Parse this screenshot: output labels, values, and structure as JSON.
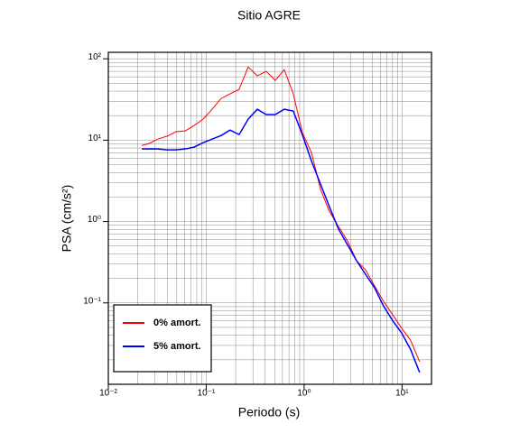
{
  "chart_data": {
    "type": "line",
    "title": "Sitio AGRE",
    "xlabel": "Periodo (s)",
    "ylabel": "PSA (cm/s²)",
    "xscale": "log",
    "yscale": "log",
    "grid": true,
    "minor_grid": true,
    "legend": "bottom-left",
    "xlim": [
      0.01,
      20
    ],
    "ylim": [
      0.01,
      120
    ],
    "xticks": [
      {
        "value": 0.01,
        "label": "10⁻²"
      },
      {
        "value": 0.1,
        "label": "10⁻¹"
      },
      {
        "value": 1,
        "label": "10⁰"
      },
      {
        "value": 10,
        "label": "10¹"
      }
    ],
    "yticks": [
      {
        "value": 0.1,
        "label": "10⁻¹"
      },
      {
        "value": 1,
        "label": "10⁰"
      },
      {
        "value": 10,
        "label": "10¹"
      },
      {
        "value": 100,
        "label": "10²"
      }
    ],
    "x": [
      0.022,
      0.026,
      0.032,
      0.04,
      0.049,
      0.061,
      0.075,
      0.093,
      0.115,
      0.142,
      0.175,
      0.217,
      0.268,
      0.332,
      0.41,
      0.507,
      0.627,
      0.775,
      0.959,
      1.19,
      1.47,
      1.81,
      2.24,
      2.77,
      3.43,
      4.24,
      5.24,
      6.47,
      8.0,
      9.89,
      12.2,
      15.1
    ],
    "series": [
      {
        "name": "0% amort.",
        "color": "#ff0000",
        "width": 1,
        "values": [
          8.6,
          9.1,
          10.3,
          11.2,
          12.7,
          13.0,
          15.1,
          18.1,
          24.0,
          32.6,
          37.0,
          42.0,
          79.4,
          61.6,
          70.0,
          54.2,
          73.6,
          37.0,
          12.4,
          7.0,
          2.5,
          1.34,
          0.87,
          0.58,
          0.33,
          0.256,
          0.162,
          0.105,
          0.072,
          0.049,
          0.035,
          0.019
        ]
      },
      {
        "name": "5% amort.",
        "color": "#0000ff",
        "width": 1.5,
        "values": [
          7.8,
          7.8,
          7.8,
          7.6,
          7.6,
          7.8,
          8.2,
          9.3,
          10.3,
          11.4,
          13.3,
          11.7,
          18.1,
          24.0,
          20.6,
          20.6,
          24.0,
          22.8,
          11.7,
          5.5,
          2.9,
          1.53,
          0.81,
          0.52,
          0.33,
          0.225,
          0.154,
          0.092,
          0.061,
          0.043,
          0.027,
          0.014
        ]
      }
    ]
  }
}
